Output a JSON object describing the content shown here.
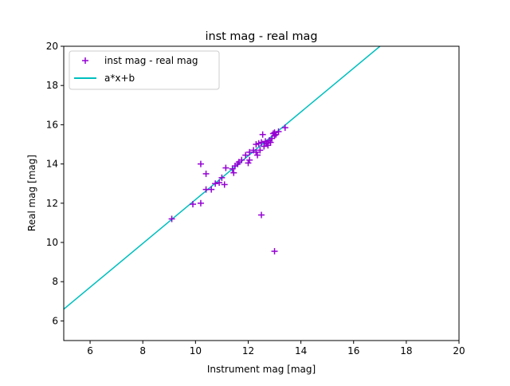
{
  "chart_data": {
    "type": "scatter",
    "title": "inst mag - real mag",
    "xlabel": "Instrument mag [mag]",
    "ylabel": "Real mag [mag]",
    "xlim": [
      5,
      20
    ],
    "ylim": [
      5,
      20
    ],
    "xticks": [
      6,
      8,
      10,
      12,
      14,
      16,
      18,
      20
    ],
    "yticks": [
      6,
      8,
      10,
      12,
      14,
      16,
      18,
      20
    ],
    "grid": false,
    "legend_position": "top-left",
    "series": [
      {
        "name": "inst mag - real mag",
        "kind": "scatter",
        "marker": "plus",
        "color": "#9400d3",
        "points": [
          [
            9.1,
            11.2
          ],
          [
            9.9,
            11.95
          ],
          [
            10.2,
            12.0
          ],
          [
            10.2,
            14.0
          ],
          [
            10.4,
            13.5
          ],
          [
            10.4,
            12.7
          ],
          [
            10.6,
            12.7
          ],
          [
            10.75,
            13.0
          ],
          [
            10.9,
            13.05
          ],
          [
            11.0,
            13.3
          ],
          [
            11.1,
            12.95
          ],
          [
            11.15,
            13.8
          ],
          [
            11.4,
            13.75
          ],
          [
            11.45,
            13.55
          ],
          [
            11.5,
            13.9
          ],
          [
            11.6,
            14.0
          ],
          [
            11.65,
            14.1
          ],
          [
            11.75,
            14.2
          ],
          [
            11.9,
            14.45
          ],
          [
            12.0,
            14.05
          ],
          [
            12.05,
            14.6
          ],
          [
            12.05,
            14.2
          ],
          [
            12.2,
            14.7
          ],
          [
            12.3,
            14.6
          ],
          [
            12.3,
            15.0
          ],
          [
            12.35,
            14.45
          ],
          [
            12.4,
            15.05
          ],
          [
            12.45,
            14.7
          ],
          [
            12.5,
            15.1
          ],
          [
            12.5,
            11.4
          ],
          [
            12.55,
            15.5
          ],
          [
            12.6,
            14.9
          ],
          [
            12.65,
            15.15
          ],
          [
            12.7,
            15.05
          ],
          [
            12.75,
            14.95
          ],
          [
            12.8,
            15.2
          ],
          [
            12.85,
            15.1
          ],
          [
            12.9,
            15.3
          ],
          [
            12.95,
            15.55
          ],
          [
            13.0,
            15.6
          ],
          [
            13.0,
            15.45
          ],
          [
            13.05,
            15.5
          ],
          [
            13.0,
            9.55
          ],
          [
            13.15,
            15.65
          ],
          [
            13.4,
            15.85
          ]
        ]
      },
      {
        "name": "a*x+b",
        "kind": "line",
        "color": "#00bfbf",
        "x": [
          5,
          17
        ],
        "y": [
          6.6,
          20.0
        ]
      }
    ]
  }
}
